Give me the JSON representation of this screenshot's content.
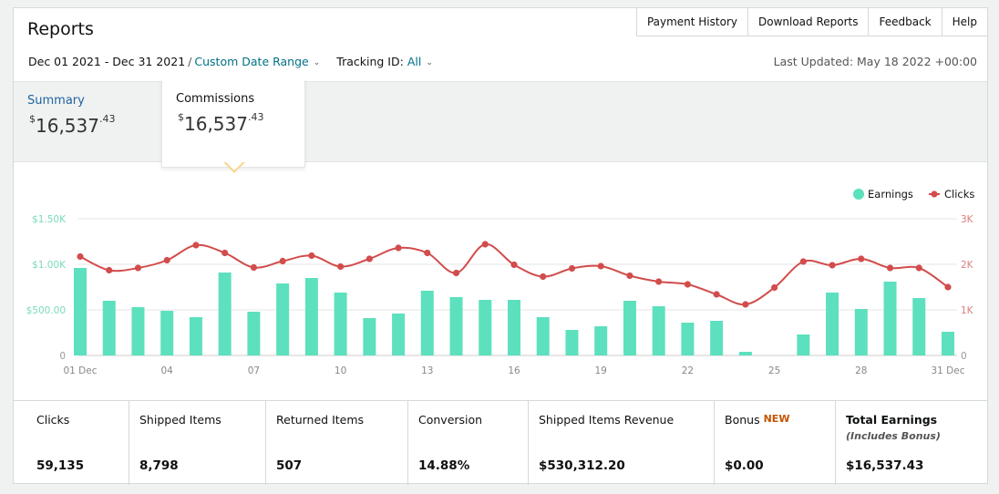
{
  "page": {
    "title": "Reports"
  },
  "topnav": [
    "Payment History",
    "Download Reports",
    "Feedback",
    "Help"
  ],
  "filters": {
    "date_range": "Dec 01 2021 - Dec 31 2021",
    "separator": "/",
    "range_type": "Custom Date Range",
    "tracking_label": "Tracking ID:",
    "tracking_value": "All"
  },
  "last_updated": "Last Updated: May 18 2022 +00:00",
  "summary_tiles": [
    {
      "label": "Summary",
      "currency": "$",
      "whole": "16,537",
      "cents": ".43"
    },
    {
      "label": "Commissions",
      "currency": "$",
      "whole": "16,537",
      "cents": ".43"
    }
  ],
  "colors": {
    "earnings": "#5de0bd",
    "clicks": "#d24c4c",
    "link": "#007185",
    "new_badge": "#c45500"
  },
  "chart_data": {
    "type": "bar",
    "legend": [
      "Earnings",
      "Clicks"
    ],
    "legend_position": "top-right",
    "grid": true,
    "x_ticks": [
      "01 Dec",
      "04",
      "07",
      "10",
      "13",
      "16",
      "19",
      "22",
      "25",
      "28",
      "31 Dec"
    ],
    "x_tick_days": [
      1,
      4,
      7,
      10,
      13,
      16,
      19,
      22,
      25,
      28,
      31
    ],
    "y_left": {
      "ticks": [
        "0",
        "$500.00",
        "$1.00K",
        "$1.50K"
      ],
      "values": [
        0,
        500,
        1000,
        1500
      ],
      "ylim": [
        0,
        1500
      ]
    },
    "y_right": {
      "ticks": [
        "0",
        "1K",
        "2K",
        "3K"
      ],
      "values": [
        0,
        1000,
        2000,
        3000
      ],
      "ylim": [
        0,
        3000
      ]
    },
    "days": [
      1,
      2,
      3,
      4,
      5,
      6,
      7,
      8,
      9,
      10,
      11,
      12,
      13,
      14,
      15,
      16,
      17,
      18,
      19,
      20,
      21,
      22,
      23,
      24,
      25,
      26,
      27,
      28,
      29,
      30,
      31
    ],
    "series": [
      {
        "name": "Earnings",
        "type": "bar",
        "axis": "left",
        "values": [
          960,
          600,
          530,
          490,
          420,
          910,
          480,
          790,
          850,
          690,
          410,
          460,
          710,
          640,
          610,
          610,
          420,
          280,
          320,
          600,
          540,
          360,
          380,
          40,
          0,
          230,
          690,
          510,
          810,
          630,
          260
        ]
      },
      {
        "name": "Clicks",
        "type": "line",
        "axis": "right",
        "values": [
          2170,
          1870,
          1920,
          2090,
          2420,
          2250,
          1930,
          2070,
          2190,
          1950,
          2120,
          2360,
          2250,
          1810,
          2440,
          1990,
          1730,
          1910,
          1960,
          1750,
          1620,
          1560,
          1340,
          1120,
          1490,
          2060,
          1980,
          2120,
          1920,
          1920,
          1500
        ]
      }
    ]
  },
  "stats": [
    {
      "label": "Clicks",
      "value": "59,135"
    },
    {
      "label": "Shipped Items",
      "value": "8,798"
    },
    {
      "label": "Returned Items",
      "value": "507"
    },
    {
      "label": "Conversion",
      "value": "14.88%"
    },
    {
      "label": "Shipped Items Revenue",
      "value": "$530,312.20"
    },
    {
      "label": "Bonus",
      "badge": "NEW",
      "value": "$0.00"
    },
    {
      "label": "Total Earnings",
      "sub": "(Includes Bonus)",
      "value": "$16,537.43"
    }
  ]
}
